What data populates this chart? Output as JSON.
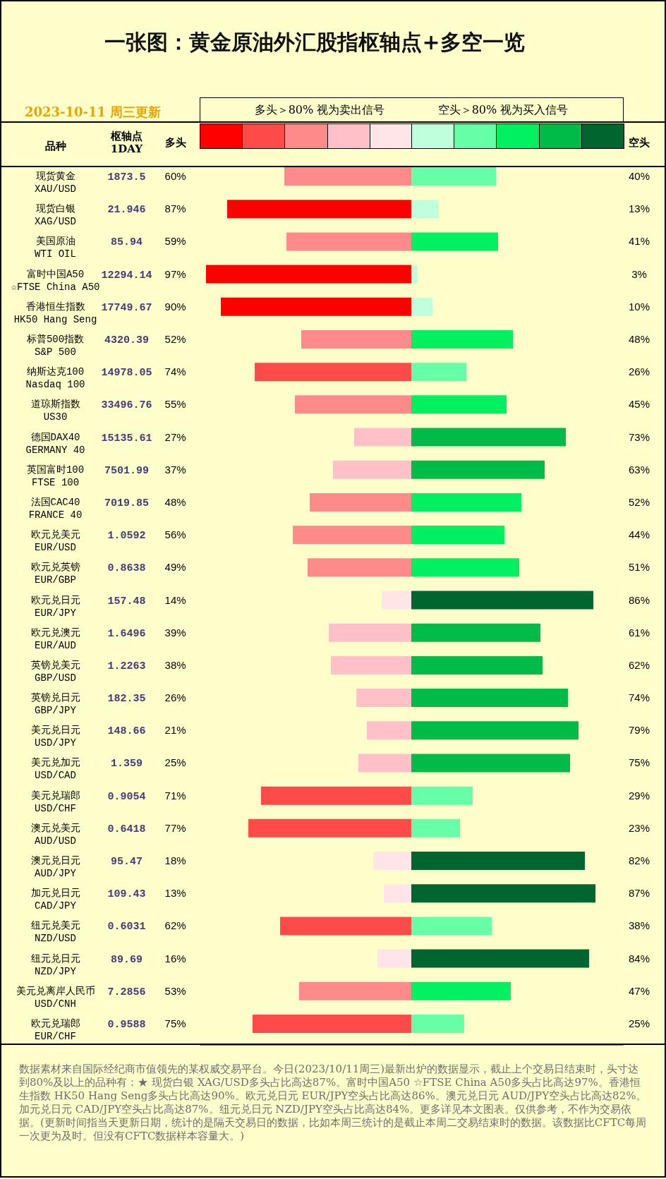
{
  "chart_data": [
    {
      "type": "bar",
      "orientation": "horizontal",
      "title": "一张图：黄金原油外汇股指枢轴点+多空一览",
      "subtitle": "2023-10-11 周三更新",
      "ylabel": "品种",
      "categories": [
        "现货黄金\nXAU/USD",
        "现货白银\nXAG/USD",
        "美国原油\nWTI OIL",
        "富时中国A50\n☆FTSE China A50",
        "香港恒生指数\nHK50 Hang Seng",
        "标普500指数\nS&P 500",
        "纳斯达克100\nNasdaq 100",
        "道琼斯指数\nUS30",
        "德国DAX40\nGERMANY 40",
        "英国富时100\nFTSE 100",
        "法国CAC40\nFRANCE 40",
        "欧元兑美元\nEUR/USD",
        "欧元兑英镑\nEUR/GBP",
        "欧元兑日元\nEUR/JPY",
        "欧元兑澳元\nEUR/AUD",
        "英镑兑美元\nGBP/USD",
        "英镑兑日元\nGBP/JPY",
        "美元兑日元\nUSD/JPY",
        "美元兑加元\nUSD/CAD",
        "美元兑瑞郎\nUSD/CHF",
        "澳元兑美元\nAUD/USD",
        "澳元兑日元\nAUD/JPY",
        "加元兑日元\nCAD/JPY",
        "纽元兑美元\nNZD/USD",
        "纽元兑日元\nNZD/JPY",
        "美元兑离岸人民币\nUSD/CNH",
        "欧元兑瑞郎\nEUR/CHF"
      ],
      "series": [
        {
          "name": "多头",
          "values": [
            60,
            87,
            59,
            97,
            90,
            52,
            74,
            55,
            27,
            37,
            48,
            56,
            49,
            14,
            39,
            38,
            26,
            21,
            25,
            71,
            77,
            18,
            13,
            62,
            16,
            53,
            75
          ],
          "colors": [
            "#ff8a8a",
            "#ff0000",
            "#ff8a8a",
            "#ff0000",
            "#ff0000",
            "#ff8a8a",
            "#ff4a4a",
            "#ff8a8a",
            "#ffc0c8",
            "#ffc0c8",
            "#ff8a8a",
            "#ff8a8a",
            "#ff8a8a",
            "#ffe4e8",
            "#ffc0c8",
            "#ffc0c8",
            "#ffc0c8",
            "#ffc0c8",
            "#ffc0c8",
            "#ff4a4a",
            "#ff4a4a",
            "#ffe4e8",
            "#ffe4e8",
            "#ff4a4a",
            "#ffe4e8",
            "#ff8a8a",
            "#ff4a4a"
          ],
          "value_labels": [
            "60%",
            "87%",
            "59%",
            "97%",
            "90%",
            "52%",
            "74%",
            "55%",
            "27%",
            "37%",
            "48%",
            "56%",
            "49%",
            "14%",
            "39%",
            "38%",
            "26%",
            "21%",
            "25%",
            "71%",
            "77%",
            "18%",
            "13%",
            "62%",
            "16%",
            "53%",
            "75%"
          ]
        }
      ],
      "xlim": [
        100,
        0
      ],
      "legend": "top",
      "annotations": [
        "多头＞80% 视为卖出信号",
        "数据素材来自国际经纪商市值领先的某权威交易平台。今日(2023/10/11周三)最新出炉的数据显示，截止上个交易日结束时，头寸达到80%及以上的品种有：★ 现货白银 XAG/USD多头占比高达87%。富时中国A50 ☆FTSE China A50多头占比高达97%。香港恒生指数 HK50 Hang Seng多头占比高达90%。欧元兑日元 EUR/JPY空头占比高达86%。澳元兑日元 AUD/JPY空头占比高达82%。加元兑日元 CAD/JPY空头占比高达87%。纽元兑日元 NZD/JPY空头占比高达84%。更多详见本文图表。仅供参考，不作为交易依据。(更新时间指当天更新日期，统计的是隔天交易日的数据，比如本周三统计的是截止本周二交易结束时的数据。该数据比CFTC每周一次更为及时。但没有CFTC数据样本容量大。)"
      ]
    },
    {
      "type": "other",
      "categories": [
        null,
        null,
        null,
        null,
        null,
        null,
        null,
        null,
        null,
        null,
        null,
        null,
        null,
        null,
        null,
        null,
        null,
        null,
        null,
        null,
        null,
        null,
        null,
        null,
        null,
        null,
        null
      ],
      "series": [
        {
          "name": "枢轴点 1DAY",
          "values": [
            1873.5,
            21.946,
            85.94,
            12294.14,
            17749.67,
            4320.39,
            14978.05,
            33496.76,
            15135.61,
            7501.99,
            7019.85,
            1.0592,
            0.8638,
            157.48,
            1.6496,
            1.2263,
            182.35,
            148.66,
            1.359,
            0.9054,
            0.6418,
            95.47,
            109.43,
            0.6031,
            89.69,
            7.2856,
            0.9588
          ]
        }
      ],
      "data_labels": true
    },
    {
      "type": "bar",
      "orientation": "horizontal",
      "categories": [
        null,
        null,
        null,
        null,
        null,
        null,
        null,
        null,
        null,
        null,
        null,
        null,
        null,
        null,
        null,
        null,
        null,
        null,
        null,
        null,
        null,
        null,
        null,
        null,
        null,
        null,
        null
      ],
      "series": [
        {
          "name": "空头",
          "values": [
            40,
            13,
            41,
            3,
            10,
            48,
            26,
            45,
            73,
            63,
            52,
            44,
            51,
            86,
            61,
            62,
            74,
            79,
            75,
            29,
            23,
            82,
            87,
            38,
            84,
            47,
            25
          ],
          "colors": [
            "#66ffa8",
            "#c0ffdc",
            "#00f060",
            "#c0ffdc",
            "#c0ffdc",
            "#00f060",
            "#66ffa8",
            "#00f060",
            "#00bb48",
            "#00bb48",
            "#00f060",
            "#00f060",
            "#00f060",
            "#00652e",
            "#00bb48",
            "#00bb48",
            "#00bb48",
            "#00bb48",
            "#00bb48",
            "#66ffa8",
            "#66ffa8",
            "#00652e",
            "#00652e",
            "#66ffa8",
            "#00652e",
            "#00f060",
            "#66ffa8"
          ],
          "value_labels": [
            "40%",
            "13%",
            "41%",
            "3%",
            "10%",
            "48%",
            "26%",
            "45%",
            "73%",
            "63%",
            "52%",
            "44%",
            "51%",
            "86%",
            "61%",
            "62%",
            "74%",
            "79%",
            "75%",
            "29%",
            "23%",
            "82%",
            "87%",
            "38%",
            "84%",
            "47%",
            "25%"
          ]
        }
      ],
      "xlim": [
        0,
        100
      ],
      "legend": "top",
      "annotations": [
        "空头＞80% 视为买入信号"
      ]
    }
  ]
}
